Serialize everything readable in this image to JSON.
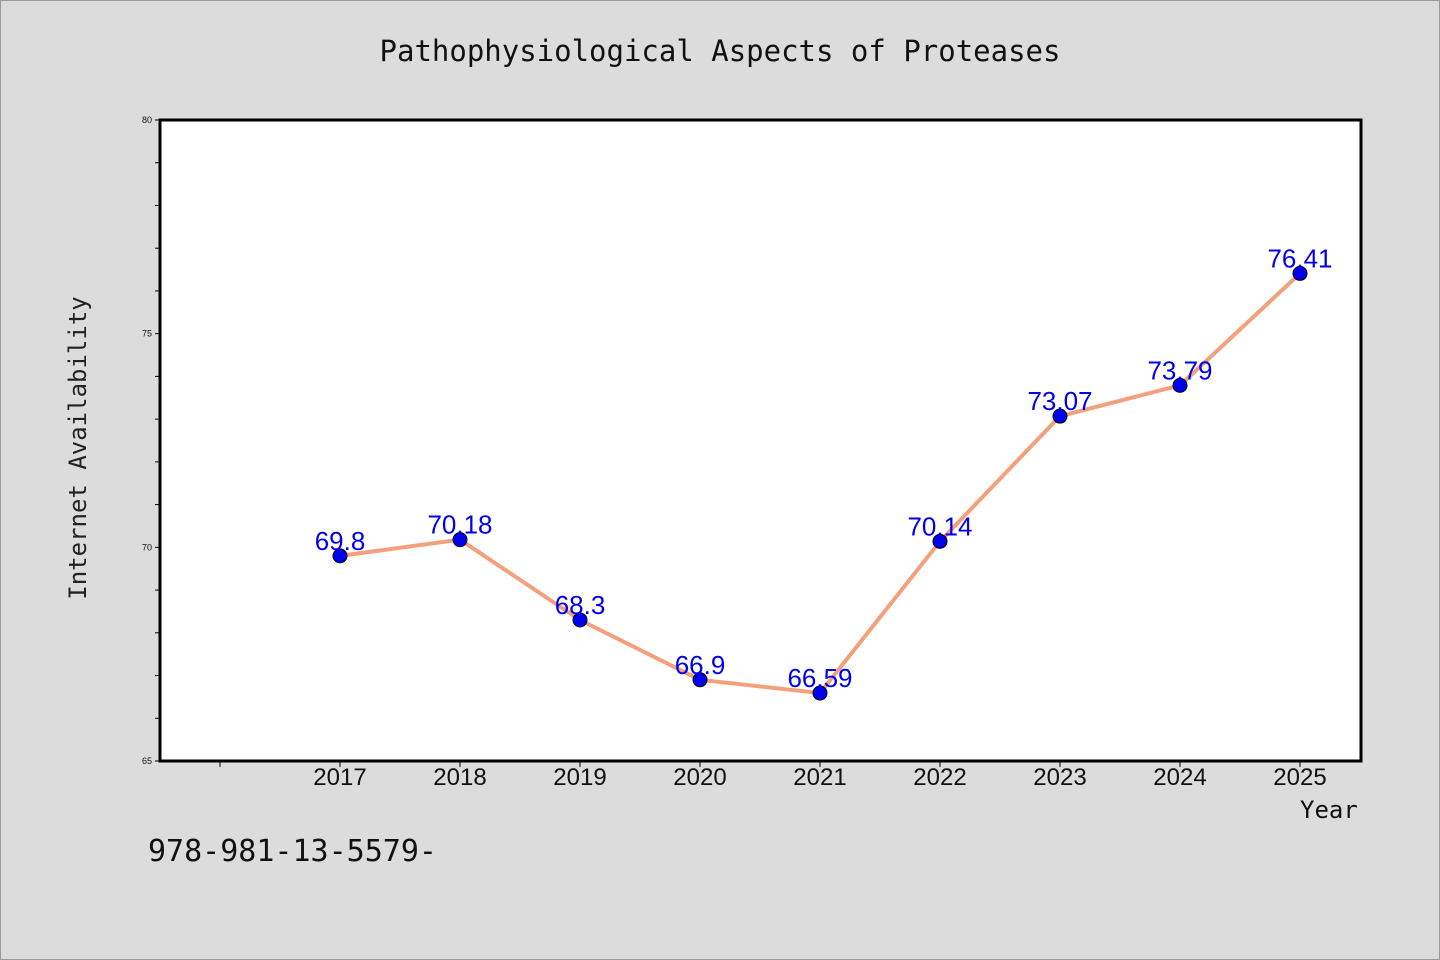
{
  "chart_data": {
    "type": "line",
    "title": "Pathophysiological Aspects of Proteases",
    "xlabel": "Year",
    "ylabel": "Internet Availability",
    "categories": [
      "2017",
      "2018",
      "2019",
      "2020",
      "2021",
      "2022",
      "2023",
      "2024",
      "2025"
    ],
    "series": [
      {
        "values": [
          69.8,
          70.18,
          68.3,
          66.9,
          66.59,
          70.14,
          73.07,
          73.79,
          76.41
        ]
      }
    ],
    "data_labels": [
      "69.8",
      "70.18",
      "68.3",
      "66.9",
      "66.59",
      "70.14",
      "73.07",
      "73.79",
      "76.41"
    ],
    "ylim": [
      65,
      80
    ],
    "yticks": [
      "65",
      "70",
      "75",
      "80"
    ],
    "grid": false,
    "legend": "none",
    "line_color": "#f4a07c",
    "marker_color": "#0000ee",
    "label_color": "#0000ee"
  },
  "footer_text": "978-981-13-5579-"
}
